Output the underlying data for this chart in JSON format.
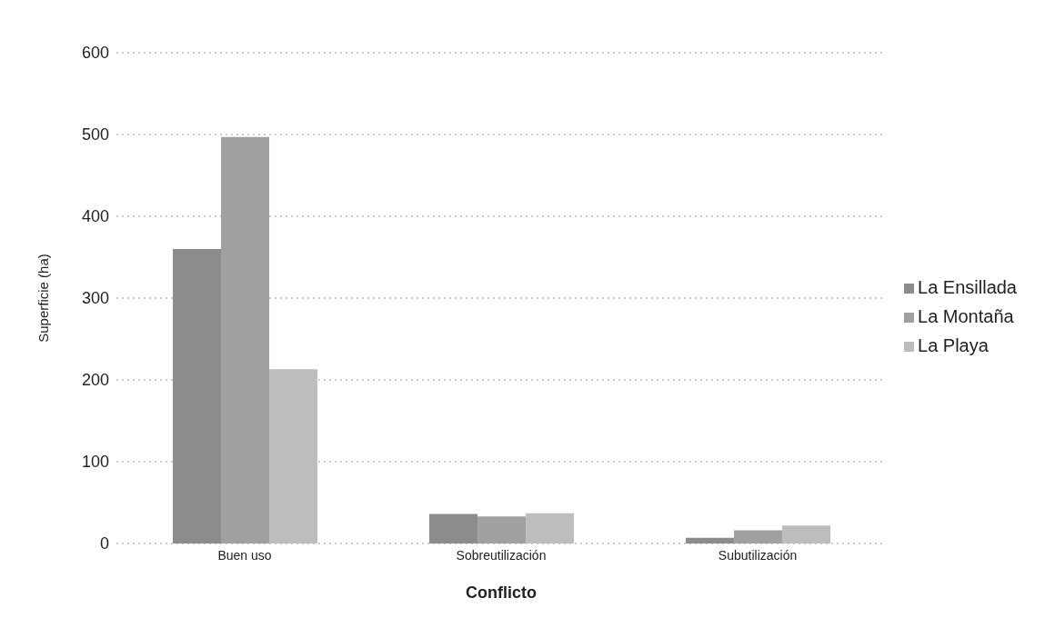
{
  "chart_data": {
    "type": "bar",
    "xlabel": "Conflicto",
    "ylabel": "Superficie (ha)",
    "categories": [
      "Buen uso",
      "Sobreutilización",
      "Subutilización"
    ],
    "series": [
      {
        "name": "La Ensillada",
        "color": "#8c8c8c",
        "values": [
          360,
          36,
          7
        ]
      },
      {
        "name": "La Montaña",
        "color": "#a0a0a0",
        "values": [
          497,
          33,
          16
        ]
      },
      {
        "name": "La Playa",
        "color": "#bdbdbd",
        "values": [
          213,
          37,
          22
        ]
      }
    ],
    "ylim": [
      0,
      600
    ],
    "yticks": [
      0,
      100,
      200,
      300,
      400,
      500,
      600
    ],
    "grid": "y",
    "legend": "right"
  }
}
